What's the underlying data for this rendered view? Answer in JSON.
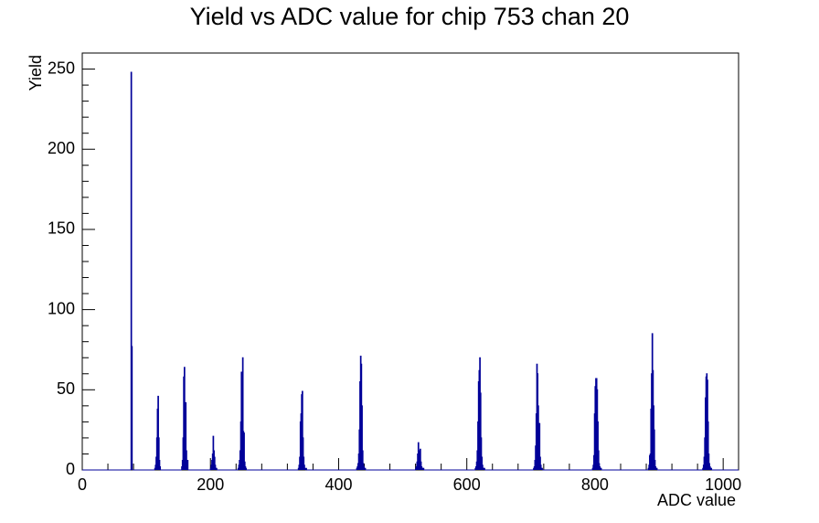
{
  "chart_data": {
    "type": "histogram",
    "title": "Yield vs ADC value for chip 753 chan 20",
    "x_label": "ADC value",
    "y_label": "Yield",
    "color": "#000099",
    "bins": [
      0,
      76,
      77,
      78,
      113,
      114,
      115,
      116,
      117,
      118,
      119,
      120,
      121,
      122,
      155,
      156,
      157,
      158,
      159,
      160,
      161,
      162,
      163,
      164,
      165,
      200,
      201,
      202,
      203,
      204,
      205,
      206,
      207,
      208,
      209,
      210,
      243,
      244,
      245,
      246,
      247,
      248,
      249,
      250,
      251,
      252,
      253,
      254,
      255,
      256,
      337,
      338,
      339,
      340,
      341,
      342,
      343,
      344,
      345,
      346,
      347,
      348,
      349,
      350,
      428,
      429,
      430,
      431,
      432,
      433,
      434,
      435,
      436,
      437,
      438,
      439,
      440,
      441,
      442,
      520,
      521,
      522,
      523,
      524,
      525,
      526,
      527,
      528,
      529,
      530,
      531,
      532,
      533,
      613,
      614,
      615,
      616,
      617,
      618,
      619,
      620,
      621,
      622,
      623,
      624,
      625,
      626,
      627,
      628,
      704,
      705,
      706,
      707,
      708,
      709,
      710,
      711,
      712,
      713,
      714,
      715,
      716,
      717,
      718,
      796,
      797,
      798,
      799,
      800,
      801,
      802,
      803,
      804,
      805,
      806,
      807,
      808,
      809,
      810,
      883,
      884,
      885,
      886,
      887,
      888,
      889,
      890,
      891,
      892,
      893,
      894,
      895,
      896,
      897,
      968,
      969,
      970,
      971,
      972,
      973,
      974,
      975,
      976,
      977,
      978,
      979,
      980,
      981,
      982,
      1024
    ],
    "values": [
      0,
      248,
      77,
      0,
      1,
      3,
      8,
      20,
      38,
      46,
      20,
      6,
      2,
      0,
      2,
      6,
      20,
      58,
      64,
      35,
      42,
      12,
      4,
      6,
      0,
      1,
      3,
      6,
      10,
      21,
      12,
      8,
      3,
      1,
      1,
      0,
      1,
      3,
      6,
      12,
      30,
      61,
      48,
      70,
      24,
      23,
      5,
      2,
      1,
      0,
      1,
      3,
      8,
      30,
      35,
      47,
      49,
      20,
      8,
      3,
      1,
      0,
      1,
      0,
      1,
      2,
      4,
      10,
      25,
      55,
      71,
      66,
      40,
      12,
      4,
      2,
      1,
      1,
      0,
      1,
      2,
      5,
      10,
      17,
      12,
      8,
      13,
      5,
      2,
      1,
      1,
      1,
      0,
      1,
      2,
      5,
      12,
      30,
      55,
      62,
      70,
      48,
      20,
      8,
      3,
      1,
      1,
      1,
      0,
      1,
      2,
      6,
      15,
      35,
      66,
      60,
      40,
      28,
      29,
      8,
      3,
      1,
      1,
      0,
      1,
      3,
      9,
      35,
      52,
      57,
      57,
      50,
      30,
      12,
      4,
      2,
      1,
      1,
      0,
      1,
      3,
      9,
      10,
      38,
      60,
      85,
      62,
      40,
      25,
      6,
      2,
      1,
      1,
      0,
      1,
      3,
      8,
      20,
      45,
      58,
      60,
      56,
      30,
      10,
      4,
      2,
      1,
      1,
      0
    ],
    "xlim": [
      0,
      1024
    ],
    "ylim": [
      0,
      260
    ],
    "xticks": [
      0,
      200,
      400,
      600,
      800,
      1000
    ],
    "yticks": [
      0,
      50,
      100,
      150,
      200,
      250
    ]
  }
}
